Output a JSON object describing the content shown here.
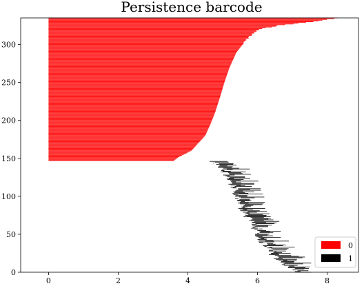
{
  "chart_data": {
    "type": "barcode",
    "title": "Persistence barcode",
    "xlim": [
      -0.8,
      8.9
    ],
    "ylim": [
      0,
      335
    ],
    "x_ticks": [
      0,
      2,
      4,
      6,
      8
    ],
    "y_ticks": [
      0,
      50,
      100,
      150,
      200,
      250,
      300
    ],
    "grid": false,
    "legend_position": "bottom-right",
    "series": [
      {
        "name": "0",
        "color": "#ff0000",
        "y_range": [
          147,
          335
        ],
        "birth": 0,
        "death_profile": [
          [
            147,
            3.6
          ],
          [
            152,
            3.75
          ],
          [
            160,
            4.1
          ],
          [
            170,
            4.3
          ],
          [
            180,
            4.5
          ],
          [
            195,
            4.65
          ],
          [
            210,
            4.78
          ],
          [
            230,
            4.92
          ],
          [
            250,
            5.05
          ],
          [
            270,
            5.2
          ],
          [
            290,
            5.4
          ],
          [
            310,
            5.75
          ],
          [
            320,
            6.05
          ],
          [
            325,
            6.6
          ],
          [
            330,
            7.6
          ],
          [
            335,
            8.3
          ]
        ]
      },
      {
        "name": "1",
        "color": "#000000",
        "y_range": [
          0,
          146
        ],
        "birth_profile": [
          [
            0,
            7.15
          ],
          [
            10,
            6.8
          ],
          [
            20,
            6.5
          ],
          [
            40,
            6.15
          ],
          [
            60,
            5.9
          ],
          [
            80,
            5.6
          ],
          [
            100,
            5.45
          ],
          [
            120,
            5.2
          ],
          [
            140,
            4.95
          ],
          [
            146,
            4.75
          ]
        ],
        "lifetime_range": [
          0.05,
          0.8
        ]
      }
    ],
    "legend": [
      {
        "label": "0",
        "color": "#ff0000"
      },
      {
        "label": "1",
        "color": "#000000"
      }
    ]
  }
}
